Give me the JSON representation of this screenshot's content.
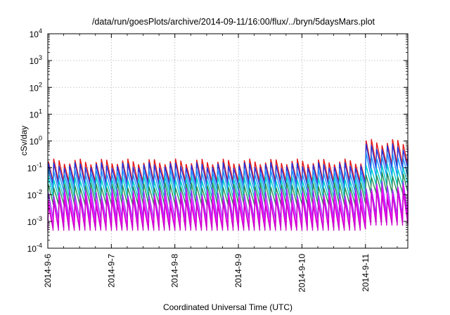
{
  "chart_data": {
    "type": "line",
    "title": "/data/run/goesPlots/archive/2014-09-11/16:00/flux/../bryn/5daysMars.plot",
    "xlabel": "Coordinated Universal Time (UTC)",
    "ylabel": "cSv/day",
    "yscale": "log",
    "ylim": [
      0.0001,
      10000
    ],
    "y_ticks": [
      {
        "value": 0.0001,
        "base": "10",
        "exp": "-4"
      },
      {
        "value": 0.001,
        "base": "10",
        "exp": "-3"
      },
      {
        "value": 0.01,
        "base": "10",
        "exp": "-2"
      },
      {
        "value": 0.1,
        "base": "10",
        "exp": "-1"
      },
      {
        "value": 1,
        "base": "10",
        "exp": "0"
      },
      {
        "value": 10,
        "base": "10",
        "exp": "1"
      },
      {
        "value": 100,
        "base": "10",
        "exp": "2"
      },
      {
        "value": 1000,
        "base": "10",
        "exp": "3"
      },
      {
        "value": 10000,
        "base": "10",
        "exp": "4"
      }
    ],
    "xlim": [
      "2014-09-06 00:00",
      "2014-09-11 16:00"
    ],
    "x_ticks": [
      "2014-9-6",
      "2014-9-7",
      "2014-9-8",
      "2014-9-9",
      "2014-9-10",
      "2014-9-11"
    ],
    "grid": true,
    "legend": "none",
    "pattern": {
      "sawtooth_cycles_per_day": 12,
      "event_onset": "2014-09-11 00:00"
    },
    "series": [
      {
        "color": "#e41a1c",
        "quiet_peak": 0.22,
        "quiet_trough": 0.028,
        "event_peak": 1.2,
        "event_trough": 0.12
      },
      {
        "color": "#2233dd",
        "quiet_peak": 0.16,
        "quiet_trough": 0.021,
        "event_peak": 0.8,
        "event_trough": 0.085
      },
      {
        "color": "#1e90ff",
        "quiet_peak": 0.09,
        "quiet_trough": 0.013,
        "event_peak": 0.38,
        "event_trough": 0.045
      },
      {
        "color": "#00cfcf",
        "quiet_peak": 0.05,
        "quiet_trough": 0.0075,
        "event_peak": 0.14,
        "event_trough": 0.022
      },
      {
        "color": "#2e8b57",
        "quiet_peak": 0.028,
        "quiet_trough": 0.0042,
        "event_peak": 0.07,
        "event_trough": 0.011
      },
      {
        "color": "#9b30ff",
        "quiet_peak": 0.018,
        "quiet_trough": 0.0011,
        "event_peak": 0.032,
        "event_trough": 0.0016
      },
      {
        "color": "#ff00ff",
        "quiet_peak": 0.012,
        "quiet_trough": 0.0006,
        "event_peak": 0.022,
        "event_trough": 0.0009
      },
      {
        "color": "#cc00cc",
        "quiet_peak": 0.008,
        "quiet_trough": 0.00045,
        "event_peak": 0.015,
        "event_trough": 0.0007
      }
    ]
  }
}
